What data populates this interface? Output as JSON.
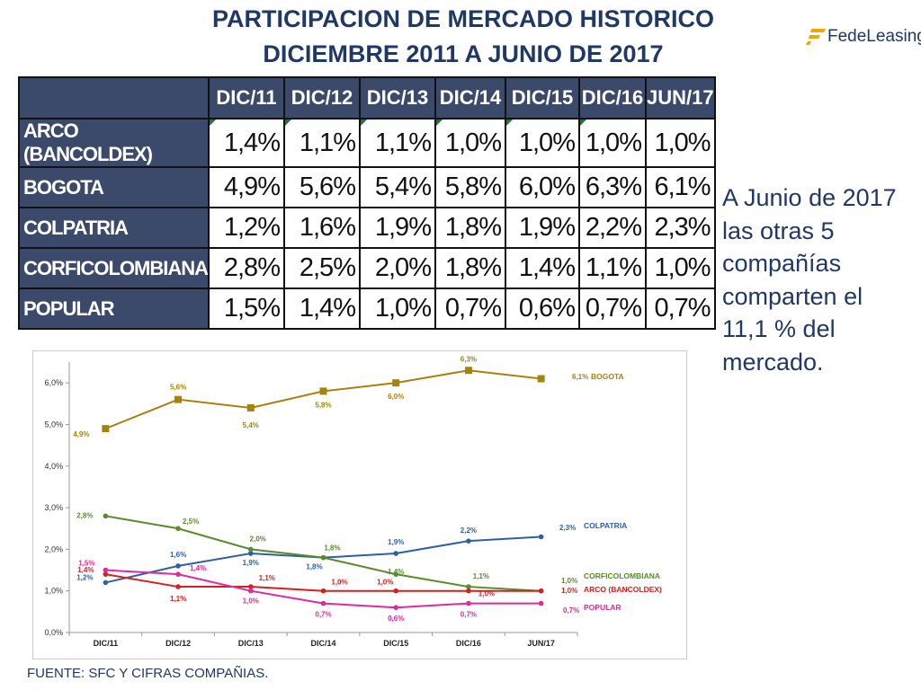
{
  "header": {
    "title_line1": "PARTICIPACION DE MERCADO HISTORICO",
    "title_line2": "DICIEMBRE 2011 A  JUNIO DE 2017",
    "logo_text": "FedeLeasing"
  },
  "table": {
    "columns": [
      "DIC/11",
      "DIC/12",
      "DIC/13",
      "DIC/14",
      "DIC/15",
      "DIC/16",
      "JUN/17"
    ],
    "rows": [
      {
        "label": "ARCO (BANCOLDEX)",
        "values": [
          "1,4%",
          "1,1%",
          "1,1%",
          "1,0%",
          "1,0%",
          "1,0%",
          "1,0%"
        ]
      },
      {
        "label": "BOGOTA",
        "values": [
          "4,9%",
          "5,6%",
          "5,4%",
          "5,8%",
          "6,0%",
          "6,3%",
          "6,1%"
        ]
      },
      {
        "label": "COLPATRIA",
        "values": [
          "1,2%",
          "1,6%",
          "1,9%",
          "1,8%",
          "1,9%",
          "2,2%",
          "2,3%"
        ]
      },
      {
        "label": "CORFICOLOMBIANA",
        "values": [
          "2,8%",
          "2,5%",
          "2,0%",
          "1,8%",
          "1,4%",
          "1,1%",
          "1,0%"
        ]
      },
      {
        "label": "POPULAR",
        "values": [
          "1,5%",
          "1,4%",
          "1,0%",
          "0,7%",
          "0,6%",
          "0,7%",
          "0,7%"
        ]
      }
    ]
  },
  "side_note": "A Junio  de 2017 las otras 5 compañías comparten el 11,1 % del mercado.",
  "source": "FUENTE: SFC Y CIFRAS COMPAÑIAS.",
  "chart_data": {
    "type": "line",
    "categories": [
      "DIC/11",
      "DIC/12",
      "DIC/13",
      "DIC/14",
      "DIC/15",
      "DIC/16",
      "JUN/17"
    ],
    "ylim": [
      0,
      6.5
    ],
    "yticks": [
      "0,0%",
      "1,0%",
      "2,0%",
      "3,0%",
      "4,0%",
      "5,0%",
      "6,0%"
    ],
    "grid": false,
    "series": [
      {
        "name": "BOGOTA",
        "color": "#a68210",
        "values": [
          4.9,
          5.6,
          5.4,
          5.8,
          6.0,
          6.3,
          6.1
        ],
        "labels": [
          "4,9%",
          "5,6%",
          "5,4%",
          "5,8%",
          "6,0%",
          "6,3%",
          "6,1%"
        ]
      },
      {
        "name": "COLPATRIA",
        "color": "#2e5fa3",
        "values": [
          1.2,
          1.6,
          1.9,
          1.8,
          1.9,
          2.2,
          2.3
        ],
        "labels": [
          "1,2%",
          "1,6%",
          "1,9%",
          "1,8%",
          "1,9%",
          "2,2%",
          "2,3%"
        ]
      },
      {
        "name": "CORFICOLOMBIANA",
        "color": "#5a8a2e",
        "values": [
          2.8,
          2.5,
          2.0,
          1.8,
          1.4,
          1.1,
          1.0
        ],
        "labels": [
          "2,8%",
          "2,5%",
          "2,0%",
          "1,8%",
          "1,4%",
          "1,1%",
          "1,0%"
        ]
      },
      {
        "name": "ARCO (BANCOLDEX)",
        "color": "#d42020",
        "values": [
          1.4,
          1.1,
          1.1,
          1.0,
          1.0,
          1.0,
          1.0
        ],
        "labels": [
          "1,4%",
          "1,1%",
          "1,1%",
          "1,0%",
          "1,0%",
          "1,0%",
          "1,0%"
        ]
      },
      {
        "name": "POPULAR",
        "color": "#e0299e",
        "values": [
          1.5,
          1.4,
          1.0,
          0.7,
          0.6,
          0.7,
          0.7
        ],
        "labels": [
          "1,5%",
          "1,4%",
          "1,0%",
          "0,7%",
          "0,6%",
          "0,7%",
          "0,7%"
        ]
      }
    ]
  }
}
